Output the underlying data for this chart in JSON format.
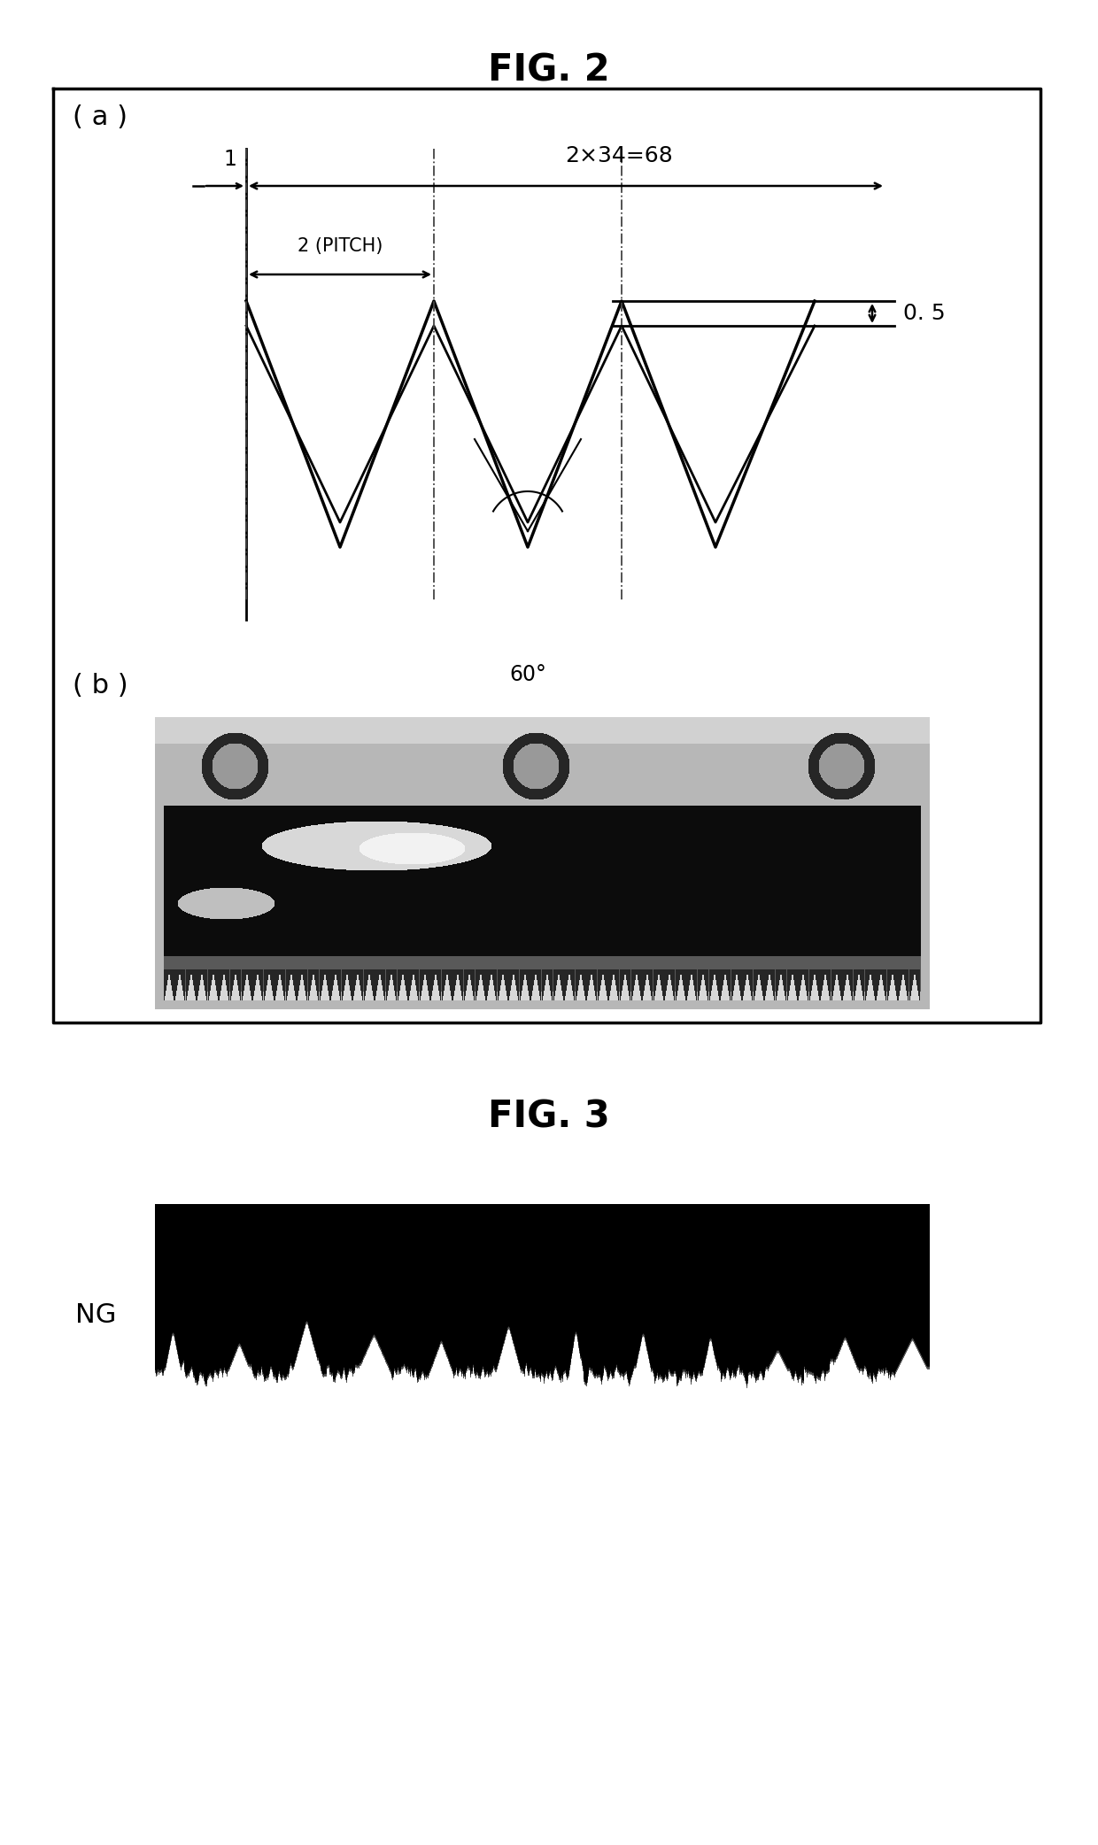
{
  "fig2_title": "FIG. 2",
  "fig3_title": "FIG. 3",
  "label_a": "( a )",
  "label_b": "( b )",
  "label_ng": "NG",
  "dim_1": "1",
  "dim_pitch": "2 (PITCH)",
  "dim_68": "2×34=68",
  "dim_05": "0. 5",
  "dim_60": "60°",
  "bg_color": "#ffffff",
  "line_color": "#000000"
}
